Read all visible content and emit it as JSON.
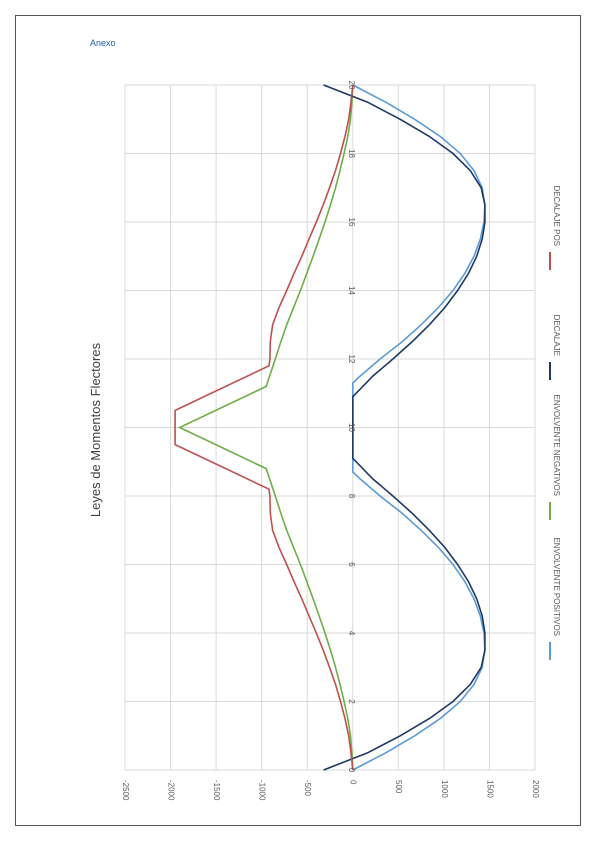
{
  "header": {
    "label": "Anexo"
  },
  "chart_data": {
    "type": "line",
    "title": "Leyes de Momentos Flectores",
    "x_ticks": [
      0,
      2,
      4,
      6,
      8,
      10,
      12,
      14,
      16,
      18,
      20
    ],
    "x_range": [
      0,
      20
    ],
    "y_ticks": [
      -2500,
      -2000,
      -1500,
      -1000,
      -500,
      0,
      500,
      1000,
      1500,
      2000
    ],
    "y_range": [
      -2500,
      2000
    ],
    "rotation": "rotated 90 degrees clockwise",
    "grid": true,
    "legend_position": "bottom",
    "series": [
      {
        "name": "ENVOLVENTE POSITIVOS",
        "color": "#5b9bd5",
        "x": [
          0,
          0.5,
          1,
          1.5,
          2,
          2.5,
          3,
          3.5,
          4,
          4.5,
          5,
          5.5,
          6,
          6.5,
          7,
          7.5,
          8,
          8.5,
          8.7,
          8.7,
          11.3,
          11.3,
          11.5,
          12,
          12.5,
          13,
          13.5,
          14,
          14.5,
          15,
          15.5,
          16,
          16.5,
          17,
          17.5,
          18,
          18.5,
          19,
          19.5,
          20
        ],
        "y": [
          0,
          360,
          680,
          960,
          1180,
          1330,
          1420,
          1450,
          1440,
          1400,
          1330,
          1230,
          1100,
          940,
          750,
          540,
          300,
          80,
          0,
          0,
          0,
          0,
          80,
          300,
          540,
          750,
          940,
          1100,
          1230,
          1330,
          1400,
          1440,
          1450,
          1420,
          1330,
          1180,
          960,
          680,
          360,
          0
        ]
      },
      {
        "name": "ENVOLVENTE NEGATIVOS",
        "color": "#70ad47",
        "x": [
          0,
          0.5,
          1,
          1.5,
          2,
          2.5,
          3,
          3.5,
          4,
          4.5,
          5,
          5.5,
          6,
          6.5,
          7,
          7.5,
          8,
          8.8,
          10,
          11.2,
          12,
          12.5,
          13,
          13.5,
          14,
          14.5,
          15,
          15.5,
          16,
          16.5,
          17,
          17.5,
          18,
          18.5,
          19,
          19.5,
          20
        ],
        "y": [
          0,
          -10,
          -25,
          -55,
          -95,
          -140,
          -190,
          -245,
          -305,
          -370,
          -435,
          -505,
          -575,
          -650,
          -725,
          -790,
          -850,
          -950,
          -1900,
          -950,
          -850,
          -790,
          -725,
          -650,
          -575,
          -505,
          -435,
          -370,
          -305,
          -245,
          -190,
          -140,
          -95,
          -55,
          -25,
          -10,
          0
        ]
      },
      {
        "name": "DECALAJE",
        "color": "#1f3864",
        "x": [
          0,
          0.5,
          1,
          1.5,
          2,
          2.5,
          3,
          3.5,
          4,
          4.5,
          5,
          5.5,
          6,
          6.5,
          7,
          7.5,
          8,
          8.5,
          9.1,
          10.9,
          11.5,
          12,
          12.5,
          13,
          13.5,
          14,
          14.5,
          15,
          15.5,
          16,
          16.5,
          17,
          17.5,
          18,
          18.5,
          19,
          19.5,
          20
        ],
        "y": [
          -320,
          160,
          520,
          840,
          1100,
          1290,
          1410,
          1450,
          1450,
          1420,
          1360,
          1270,
          1150,
          1010,
          840,
          650,
          440,
          220,
          0,
          0,
          220,
          440,
          650,
          840,
          1010,
          1150,
          1270,
          1360,
          1420,
          1450,
          1450,
          1410,
          1290,
          1100,
          840,
          520,
          160,
          -320
        ]
      },
      {
        "name": "DECALAJE POS",
        "color": "#c0504d",
        "x": [
          0,
          0.5,
          1,
          1.5,
          2,
          2.5,
          3,
          3.5,
          4,
          4.5,
          5,
          5.5,
          6,
          6.5,
          7,
          7.5,
          8,
          8.2,
          9.5,
          9.5,
          10.5,
          10.5,
          11.8,
          12,
          12.5,
          13,
          13.5,
          14,
          14.5,
          15,
          15.5,
          16,
          16.5,
          17,
          17.5,
          18,
          18.5,
          19,
          19.5,
          20
        ],
        "y": [
          0,
          -20,
          -45,
          -85,
          -135,
          -190,
          -255,
          -325,
          -400,
          -480,
          -560,
          -645,
          -725,
          -810,
          -880,
          -905,
          -910,
          -920,
          -1950,
          -1950,
          -1950,
          -1950,
          -920,
          -910,
          -905,
          -880,
          -810,
          -725,
          -645,
          -560,
          -480,
          -400,
          -325,
          -255,
          -190,
          -135,
          -85,
          -45,
          -20,
          0
        ]
      }
    ]
  }
}
